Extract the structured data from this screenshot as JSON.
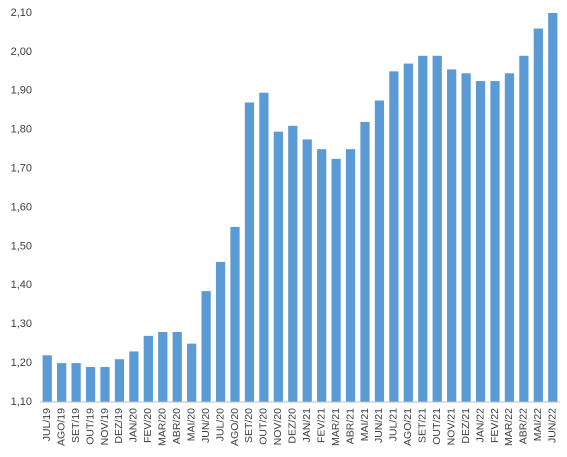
{
  "chart_data": {
    "type": "bar",
    "categories": [
      "JUL/19",
      "AGO/19",
      "SET/19",
      "OUT/19",
      "NOV/19",
      "DEZ/19",
      "JAN/20",
      "FEV/20",
      "MAR/20",
      "ABR/20",
      "MAI/20",
      "JUN/20",
      "JUL/20",
      "AGO/20",
      "SET/20",
      "OUT/20",
      "NOV/20",
      "DEZ/20",
      "JAN/21",
      "FEV/21",
      "MAR/21",
      "ABR/21",
      "MAI/21",
      "JUN/21",
      "JUL/21",
      "AGO/21",
      "SET/21",
      "OUT/21",
      "NOV/21",
      "DEZ/21",
      "JAN/22",
      "FEV/22",
      "MAR/22",
      "ABR/22",
      "MAI/22",
      "JUN/22"
    ],
    "values": [
      1.22,
      1.2,
      1.2,
      1.19,
      1.19,
      1.21,
      1.23,
      1.27,
      1.28,
      1.28,
      1.25,
      1.385,
      1.46,
      1.55,
      1.87,
      1.895,
      1.795,
      1.81,
      1.775,
      1.75,
      1.725,
      1.75,
      1.82,
      1.875,
      1.95,
      1.97,
      1.99,
      1.99,
      1.955,
      1.945,
      1.925,
      1.925,
      1.945,
      1.99,
      2.06,
      2.1
    ],
    "color": "#5b9bd5",
    "ylim": [
      1.1,
      2.1
    ],
    "yticks": [
      {
        "value": 1.1,
        "label": "1,10"
      },
      {
        "value": 1.2,
        "label": "1,20"
      },
      {
        "value": 1.3,
        "label": "1,30"
      },
      {
        "value": 1.4,
        "label": "1,40"
      },
      {
        "value": 1.5,
        "label": "1,50"
      },
      {
        "value": 1.6,
        "label": "1,60"
      },
      {
        "value": 1.7,
        "label": "1,70"
      },
      {
        "value": 1.8,
        "label": "1,80"
      },
      {
        "value": 1.9,
        "label": "1,90"
      },
      {
        "value": 2.0,
        "label": "2,00"
      },
      {
        "value": 2.1,
        "label": "2,10"
      }
    ],
    "grid": false
  }
}
